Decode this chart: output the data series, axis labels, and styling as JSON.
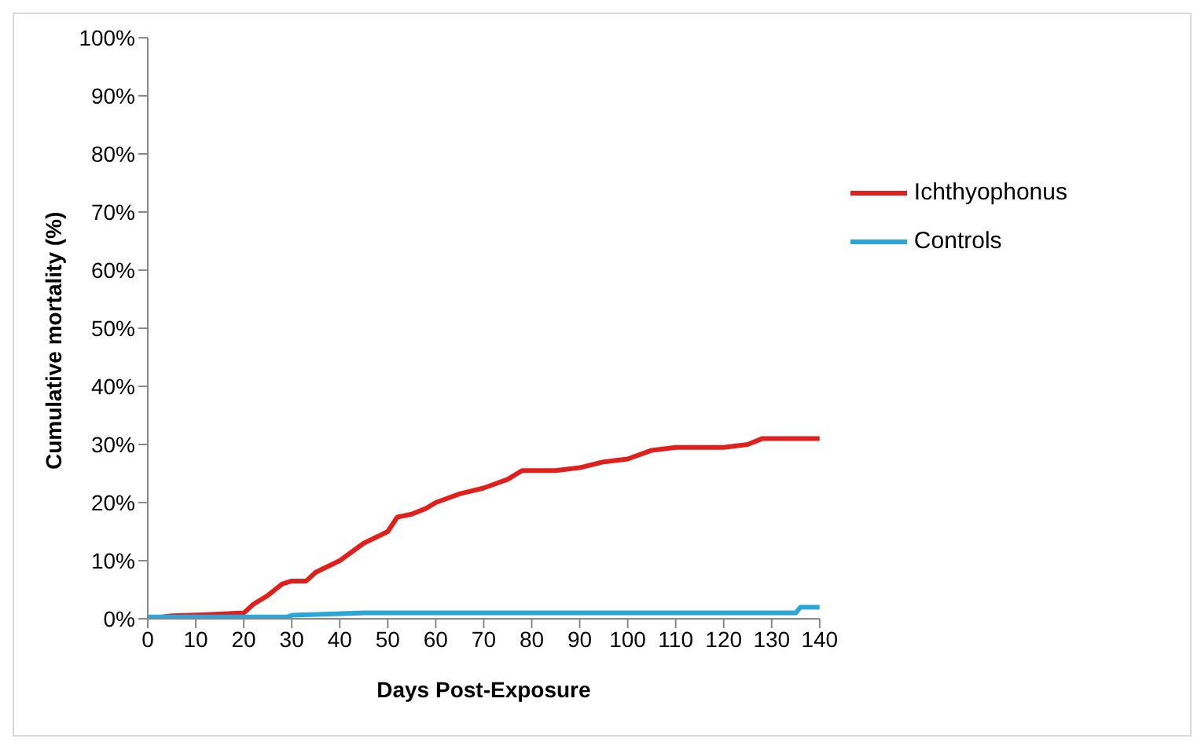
{
  "chart_data": {
    "type": "line",
    "xlabel": "Days Post-Exposure",
    "ylabel": "Cumulative mortality (%)",
    "xlim": [
      0,
      140
    ],
    "xticks": [
      0,
      10,
      20,
      30,
      40,
      50,
      60,
      70,
      80,
      90,
      100,
      110,
      120,
      130,
      140
    ],
    "ylim": [
      0,
      100
    ],
    "yticks": [
      {
        "value": 0,
        "label": "0%"
      },
      {
        "value": 10,
        "label": "10%"
      },
      {
        "value": 20,
        "label": "20%"
      },
      {
        "value": 30,
        "label": "30%"
      },
      {
        "value": 40,
        "label": "40%"
      },
      {
        "value": 50,
        "label": "50%"
      },
      {
        "value": 60,
        "label": "60%"
      },
      {
        "value": 70,
        "label": "70%"
      },
      {
        "value": 80,
        "label": "80%"
      },
      {
        "value": 90,
        "label": "90%"
      },
      {
        "value": 100,
        "label": "100%"
      }
    ],
    "grid": false,
    "legend": "right",
    "marker": "none",
    "line_style": "solid",
    "series": [
      {
        "name": "Ichthyophonus",
        "color": "#e0201c",
        "x": [
          0,
          5,
          15,
          20,
          22,
          25,
          28,
          30,
          33,
          35,
          40,
          45,
          50,
          52,
          55,
          58,
          60,
          65,
          70,
          75,
          78,
          85,
          90,
          95,
          100,
          105,
          110,
          120,
          125,
          128,
          140
        ],
        "values": [
          0,
          0.5,
          0.8,
          1,
          2.5,
          4,
          6,
          6.5,
          6.5,
          8,
          10,
          13,
          15,
          17.5,
          18,
          19,
          20,
          21.5,
          22.5,
          24,
          25.5,
          25.5,
          26,
          27,
          27.5,
          29,
          29.5,
          29.5,
          30,
          31,
          31
        ]
      },
      {
        "name": "Controls",
        "color": "#2aa7d8",
        "x": [
          0,
          29,
          30,
          45,
          135,
          136,
          140
        ],
        "values": [
          0.3,
          0.3,
          0.6,
          1,
          1,
          2,
          2
        ]
      }
    ]
  }
}
